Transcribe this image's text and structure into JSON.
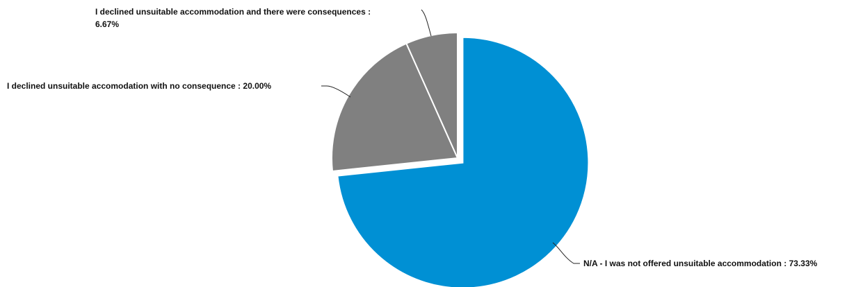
{
  "chart_data": {
    "type": "pie",
    "title": "",
    "slices": [
      {
        "label": "N/A - I was not offered unsuitable accommodation",
        "value": 73.33,
        "value_label": "73.33%",
        "color": "#0090D4",
        "exploded": true
      },
      {
        "label": "I declined unsuitable accomodation with no consequence",
        "value": 20.0,
        "value_label": "20.00%",
        "color": "#808080",
        "exploded": false
      },
      {
        "label": "I declined unsuitable accommodation and there were consequences",
        "value": 6.67,
        "value_label": "6.67%",
        "color": "#808080",
        "exploded": false
      }
    ],
    "legend": "none",
    "label_separator": " : "
  }
}
